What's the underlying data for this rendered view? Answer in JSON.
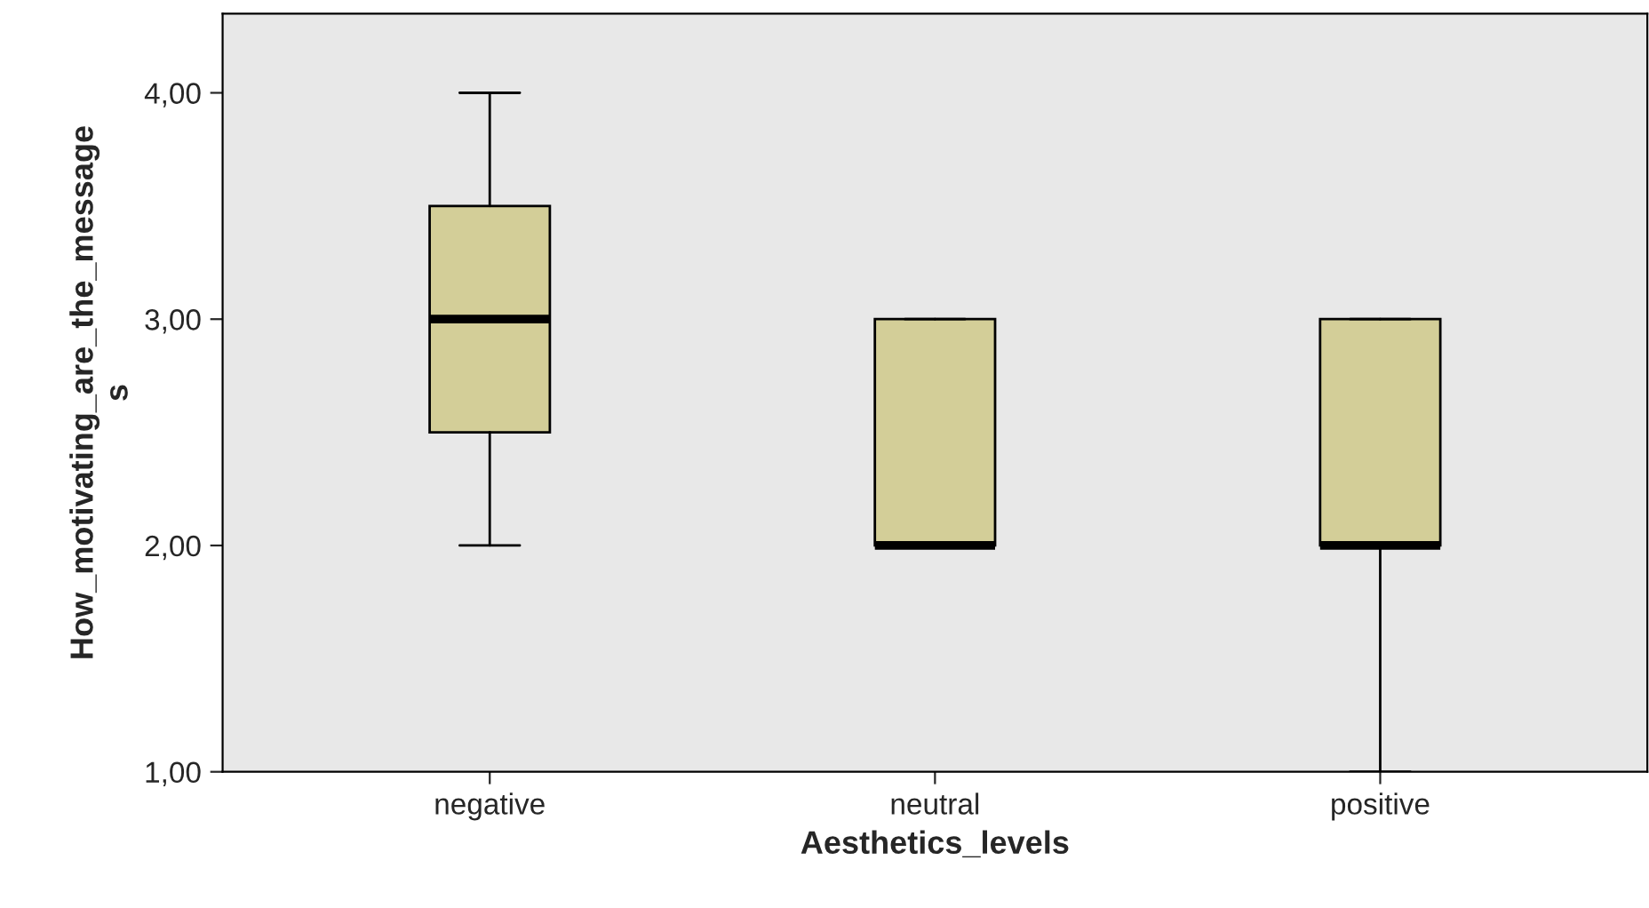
{
  "chart_data": {
    "type": "box",
    "xlabel": "Aesthetics_levels",
    "ylabel": "How_motivating_are_the_message\ns",
    "categories": [
      "negative",
      "neutral",
      "positive"
    ],
    "boxes": [
      {
        "low": 2,
        "q1": 2.5,
        "median": 3,
        "q3": 3.5,
        "high": 4
      },
      {
        "low": 2,
        "q1": 2,
        "median": 2,
        "q3": 3,
        "high": 3
      },
      {
        "low": 1,
        "q1": 2,
        "median": 2,
        "q3": 3,
        "high": 3
      }
    ],
    "color": "#d3ce98",
    "ylim": [
      1,
      4.35
    ],
    "yticks": [
      {
        "value": 1,
        "label": "1,00"
      },
      {
        "value": 2,
        "label": "2,00"
      },
      {
        "value": 3,
        "label": "3,00"
      },
      {
        "value": 4,
        "label": "4,00"
      }
    ],
    "grid": false
  }
}
